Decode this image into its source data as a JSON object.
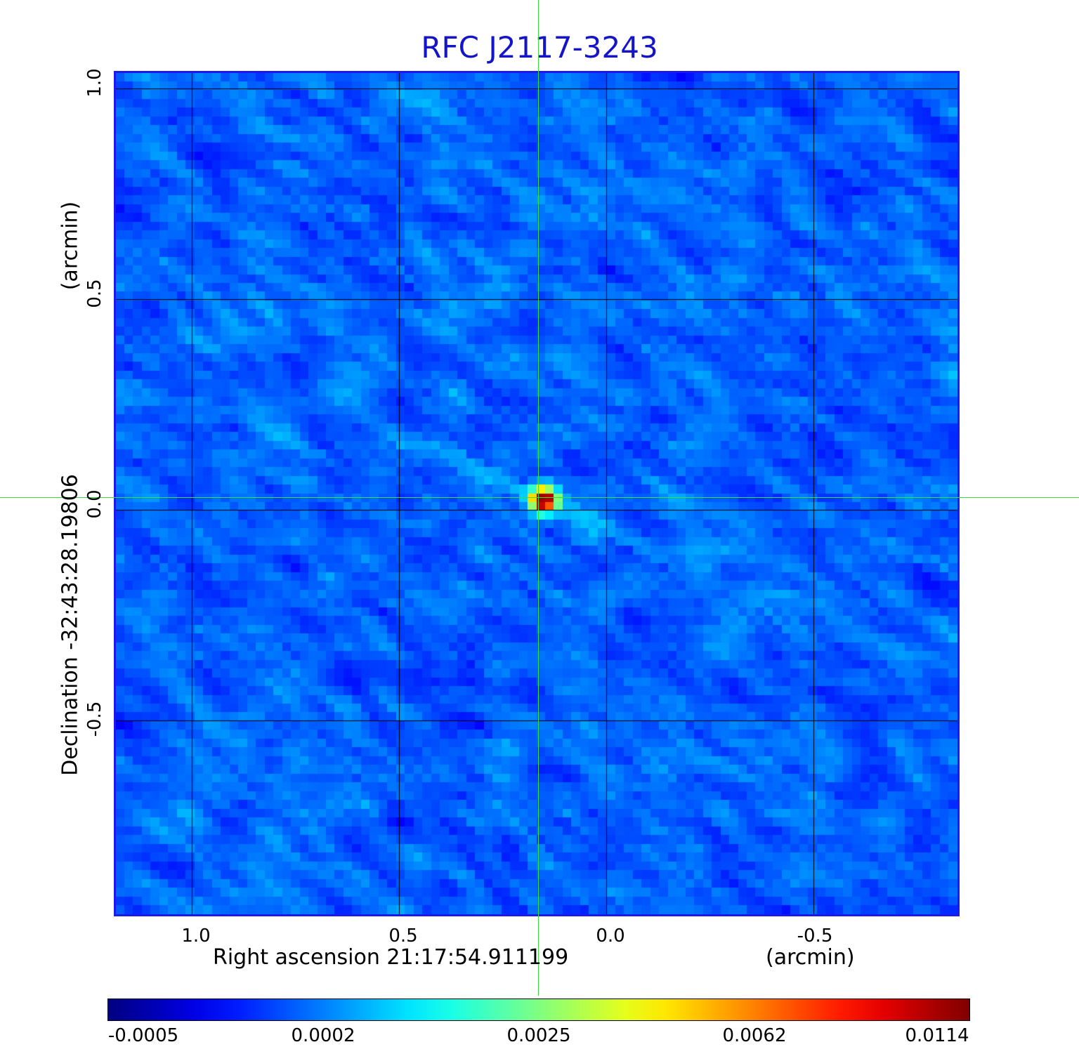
{
  "title": "RFC J2117-3243",
  "x_axis": {
    "label": "Right ascension  21:17:54.911199",
    "unit": "(arcmin)",
    "ticks": [
      "1.0",
      "0.5",
      "0.0",
      "-0.5"
    ],
    "tick_values": [
      1.0,
      0.5,
      0.0,
      -0.5
    ]
  },
  "y_axis": {
    "label": "Declination  -32:43:28.19806",
    "unit": "(arcmin)",
    "ticks": [
      "1.0",
      "0.5",
      "0.0",
      "-0.5"
    ],
    "tick_values": [
      1.0,
      0.5,
      0.0,
      -0.5
    ]
  },
  "colorbar": {
    "ticks": [
      "-0.0005",
      "0.0002",
      "0.0025",
      "0.0062",
      "0.0114"
    ],
    "colormap": "jet"
  },
  "colors": {
    "title": "#1414c8",
    "frame": "#1a1af0",
    "crosshair": "#3cdc3c",
    "grid": "#000000"
  }
}
